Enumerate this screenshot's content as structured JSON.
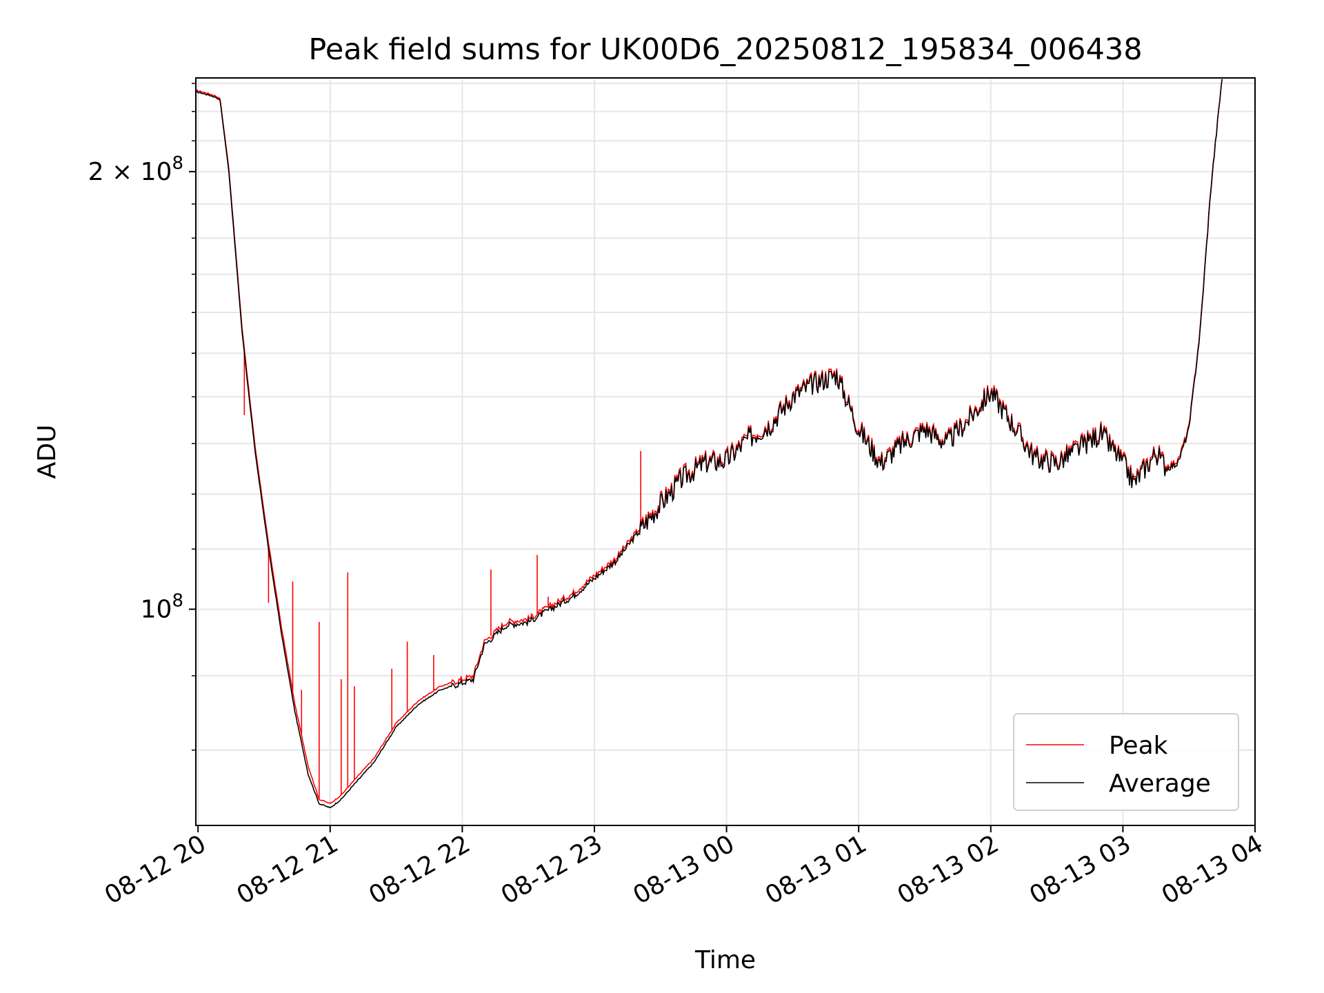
{
  "chart_data": {
    "type": "line",
    "title": "Peak field sums for UK00D6_20250812_195834_006438",
    "xlabel": "Time",
    "ylabel": "ADU",
    "yscale": "log",
    "ylim": [
      71000000,
      232000000
    ],
    "xlim": [
      "08-12 19:59",
      "08-13 04:00"
    ],
    "x_ticks": [
      "08-12 20",
      "08-12 21",
      "08-12 22",
      "08-12 23",
      "08-13 00",
      "08-13 01",
      "08-13 02",
      "08-13 03",
      "08-13 04"
    ],
    "y_ticks": [
      {
        "value": 100000000,
        "base": "10",
        "exp": "8",
        "prefix": ""
      },
      {
        "value": 200000000,
        "base": "10",
        "exp": "8",
        "prefix": "2 × "
      }
    ],
    "grid": true,
    "legend": "lower-right",
    "colors": {
      "Peak": "#ff0000",
      "Average": "#000000"
    },
    "series": [
      {
        "name": "Average",
        "x": [
          "08-12 19:59",
          "08-12 20:04",
          "08-12 20:08",
          "08-12 20:10",
          "08-12 20:14",
          "08-12 20:20",
          "08-12 20:26",
          "08-12 20:32",
          "08-12 20:38",
          "08-12 20:44",
          "08-12 20:50",
          "08-12 20:55",
          "08-12 21:00",
          "08-12 21:05",
          "08-12 21:10",
          "08-12 21:20",
          "08-12 21:30",
          "08-12 21:40",
          "08-12 21:50",
          "08-12 21:55",
          "08-12 22:05",
          "08-12 22:10",
          "08-12 22:20",
          "08-12 22:30",
          "08-12 22:40",
          "08-12 22:50",
          "08-12 23:00",
          "08-12 23:10",
          "08-12 23:20",
          "08-12 23:30",
          "08-12 23:40",
          "08-12 23:50",
          "08-13 00:00",
          "08-13 00:10",
          "08-13 00:20",
          "08-13 00:30",
          "08-13 00:40",
          "08-13 00:50",
          "08-13 01:00",
          "08-13 01:10",
          "08-13 01:20",
          "08-13 01:30",
          "08-13 01:40",
          "08-13 01:50",
          "08-13 02:00",
          "08-13 02:10",
          "08-13 02:20",
          "08-13 02:30",
          "08-13 02:40",
          "08-13 02:50",
          "08-13 03:00",
          "08-13 03:05",
          "08-13 03:10",
          "08-13 03:15",
          "08-13 03:20",
          "08-13 03:25",
          "08-13 03:30",
          "08-13 03:35",
          "08-13 03:40",
          "08-13 03:45"
        ],
        "values": [
          227000000,
          226000000,
          225000000,
          224000000,
          200000000,
          155000000,
          128000000,
          110000000,
          96000000,
          85000000,
          77000000,
          73500000,
          73000000,
          74000000,
          75500000,
          78500000,
          83000000,
          86000000,
          88000000,
          88500000,
          89500000,
          94500000,
          97500000,
          98000000,
          100000000,
          102000000,
          105000000,
          108000000,
          113000000,
          118000000,
          123000000,
          126000000,
          126500000,
          131000000,
          134000000,
          140000000,
          143000000,
          145000000,
          133000000,
          126000000,
          130000000,
          133000000,
          130000000,
          135000000,
          141000000,
          134000000,
          127000000,
          126000000,
          129000000,
          132000000,
          126000000,
          122000000,
          125000000,
          128000000,
          125000000,
          126000000,
          133000000,
          155000000,
          195000000,
          232000000
        ]
      },
      {
        "name": "Peak",
        "x": [
          "08-12 19:59",
          "08-12 20:04",
          "08-12 20:08",
          "08-12 20:10",
          "08-12 20:14",
          "08-12 20:20",
          "08-12 20:26",
          "08-12 20:32",
          "08-12 20:38",
          "08-12 20:44",
          "08-12 20:50",
          "08-12 20:55",
          "08-12 21:00",
          "08-12 21:05",
          "08-12 21:10",
          "08-12 21:20",
          "08-12 21:30",
          "08-12 21:40",
          "08-12 21:50",
          "08-12 21:55",
          "08-12 22:05",
          "08-12 22:10",
          "08-12 22:20",
          "08-12 22:30",
          "08-12 22:40",
          "08-12 22:50",
          "08-12 23:00",
          "08-12 23:10",
          "08-12 23:20",
          "08-12 23:30",
          "08-12 23:40",
          "08-12 23:50",
          "08-13 00:00",
          "08-13 00:10",
          "08-13 00:20",
          "08-13 00:30",
          "08-13 00:40",
          "08-13 00:50",
          "08-13 01:00",
          "08-13 01:10",
          "08-13 01:20",
          "08-13 01:30",
          "08-13 01:40",
          "08-13 01:50",
          "08-13 02:00",
          "08-13 02:10",
          "08-13 02:20",
          "08-13 02:30",
          "08-13 02:40",
          "08-13 02:50",
          "08-13 03:00",
          "08-13 03:05",
          "08-13 03:10",
          "08-13 03:15",
          "08-13 03:20",
          "08-13 03:25",
          "08-13 03:30",
          "08-13 03:35",
          "08-13 03:40",
          "08-13 03:45"
        ],
        "values": [
          227500000,
          226500000,
          225500000,
          224500000,
          201000000,
          156000000,
          129000000,
          111000000,
          97000000,
          86000000,
          78000000,
          74000000,
          73500000,
          74500000,
          76000000,
          79000000,
          83500000,
          86500000,
          88500000,
          89000000,
          90000000,
          95000000,
          98000000,
          98500000,
          100500000,
          102500000,
          105500000,
          108500000,
          113500000,
          118500000,
          123500000,
          126500000,
          127000000,
          131500000,
          134500000,
          140500000,
          143500000,
          145500000,
          133500000,
          126500000,
          130500000,
          133500000,
          130500000,
          135500000,
          141500000,
          134500000,
          127500000,
          126500000,
          129500000,
          132500000,
          126500000,
          122500000,
          125500000,
          128500000,
          125500000,
          126500000,
          133500000,
          155500000,
          195500000,
          232000000
        ]
      }
    ],
    "peak_spikes": [
      {
        "x": "08-12 20:21",
        "value": 136000000
      },
      {
        "x": "08-12 20:32",
        "value": 101000000
      },
      {
        "x": "08-12 20:43",
        "value": 104500000
      },
      {
        "x": "08-12 20:47",
        "value": 88000000
      },
      {
        "x": "08-12 20:55",
        "value": 98000000
      },
      {
        "x": "08-12 21:08",
        "value": 106000000
      },
      {
        "x": "08-12 21:05",
        "value": 89500000
      },
      {
        "x": "08-12 21:11",
        "value": 88500000
      },
      {
        "x": "08-12 21:28",
        "value": 91000000
      },
      {
        "x": "08-12 21:35",
        "value": 95000000
      },
      {
        "x": "08-12 21:47",
        "value": 93000000
      },
      {
        "x": "08-12 22:13",
        "value": 106500000
      },
      {
        "x": "08-12 22:34",
        "value": 109000000
      },
      {
        "x": "08-12 22:39",
        "value": 102000000
      },
      {
        "x": "08-12 23:21",
        "value": 128500000
      }
    ]
  }
}
